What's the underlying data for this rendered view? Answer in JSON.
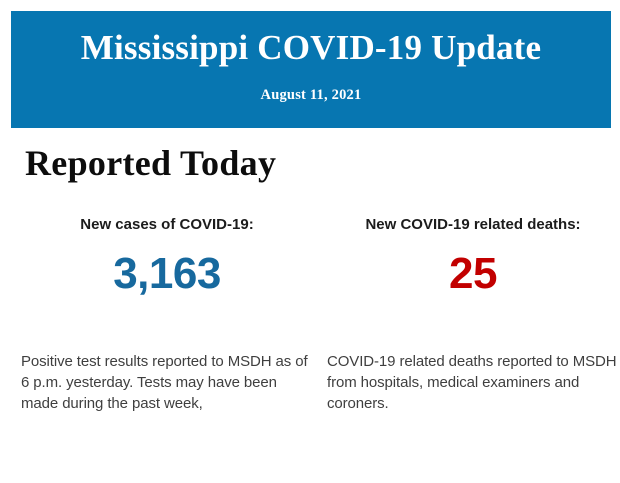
{
  "header": {
    "title": "Mississippi COVID-19 Update",
    "date": "August 11, 2021",
    "background_color": "#0776b1",
    "text_color": "#ffffff"
  },
  "section": {
    "heading": "Reported Today"
  },
  "stats": [
    {
      "label": "New cases of COVID-19:",
      "value": "3,163",
      "value_color": "#17699e",
      "description": "Positive test results reported to MSDH as of 6 p.m. yesterday. Tests may have been made during the past week,"
    },
    {
      "label": "New COVID-19 related deaths:",
      "value": "25",
      "value_color": "#c20000",
      "description": "COVID-19 related deaths reported to MSDH from hospitals, medical examiners and coroners."
    }
  ]
}
